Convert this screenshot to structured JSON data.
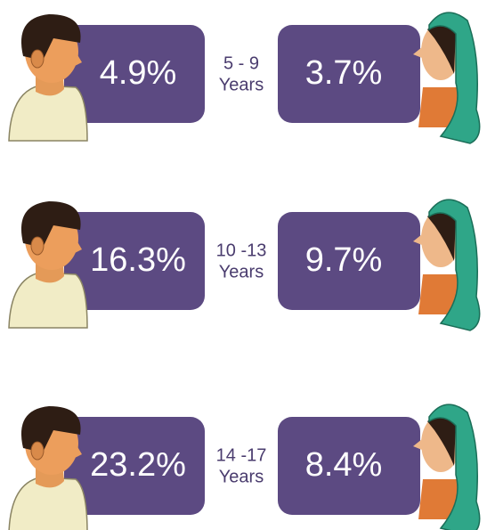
{
  "rows": [
    {
      "boy": "4.9%",
      "age": "5 - 9",
      "unit": "Years",
      "girl": "3.7%"
    },
    {
      "boy": "16.3%",
      "age": "10 -13",
      "unit": "Years",
      "girl": "9.7%"
    },
    {
      "boy": "23.2%",
      "age": "14 -17",
      "unit": "Years",
      "girl": "8.4%"
    }
  ]
}
